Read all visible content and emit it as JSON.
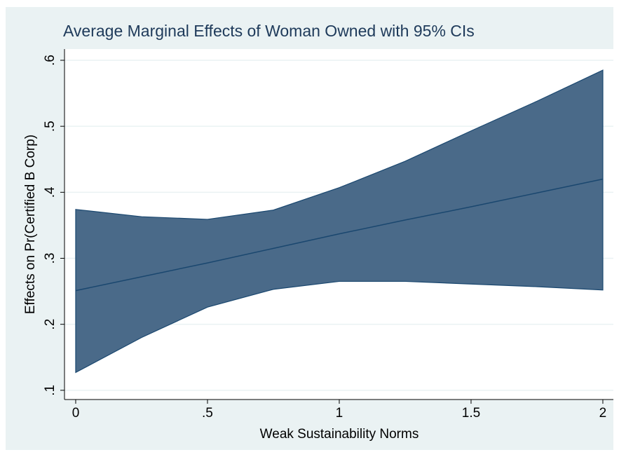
{
  "chart_data": {
    "type": "ci-line",
    "title": "Average Marginal Effects of Woman Owned with 95% CIs",
    "x_label": "Weak Sustainability Norms",
    "y_label": "Effects on Pr(Certified B Corp)",
    "x": [
      0,
      0.25,
      0.5,
      0.75,
      1,
      1.25,
      1.5,
      1.75,
      2
    ],
    "values": [
      0.251,
      0.272,
      0.293,
      0.315,
      0.337,
      0.358,
      0.378,
      0.399,
      0.42
    ],
    "upper": [
      0.374,
      0.363,
      0.359,
      0.373,
      0.407,
      0.447,
      0.493,
      0.538,
      0.585
    ],
    "lower": [
      0.127,
      0.18,
      0.226,
      0.253,
      0.265,
      0.265,
      0.261,
      0.257,
      0.252
    ],
    "color": "#1a476f",
    "band_color": "#4a6a89",
    "xlim": [
      -0.0425,
      2.04
    ],
    "ylim": [
      0.086,
      0.617
    ],
    "xticks": [
      0,
      {
        "value": 0.5,
        "label": ".5"
      },
      1,
      {
        "value": 1.5,
        "label": "1.5"
      },
      2
    ],
    "yticks": [
      {
        "value": 0.1,
        "label": ".1"
      },
      {
        "value": 0.2,
        "label": ".2"
      },
      {
        "value": 0.3,
        "label": ".3"
      },
      {
        "value": 0.4,
        "label": ".4"
      },
      {
        "value": 0.5,
        "label": ".5"
      },
      {
        "value": 0.6,
        "label": ".6"
      }
    ],
    "grid": true
  }
}
